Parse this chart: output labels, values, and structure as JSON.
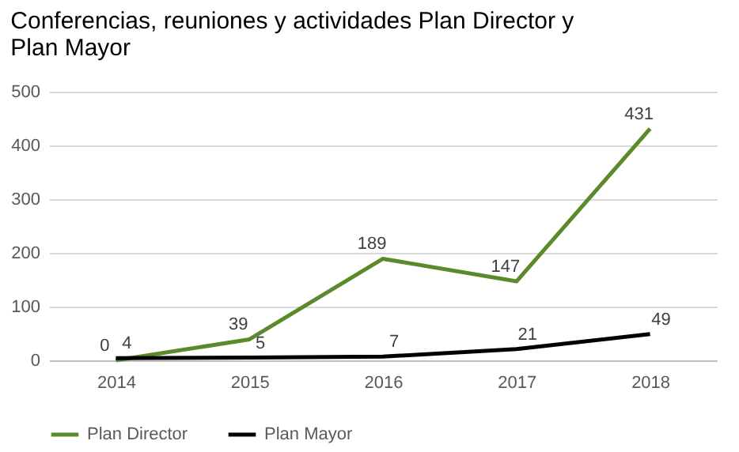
{
  "chart_data": {
    "type": "line",
    "title": "Conferencias, reuniones y actividades Plan Director y Plan Mayor",
    "categories": [
      "2014",
      "2015",
      "2016",
      "2017",
      "2018"
    ],
    "series": [
      {
        "name": "Plan Director",
        "color": "#5b8a2d",
        "values": [
          0,
          39,
          189,
          147,
          431
        ]
      },
      {
        "name": "Plan Mayor",
        "color": "#000000",
        "values": [
          4,
          5,
          7,
          21,
          49
        ]
      }
    ],
    "ylim": [
      0,
      500
    ],
    "yticks": [
      0,
      100,
      200,
      300,
      400,
      500
    ],
    "grid": "y",
    "legend": "bottom",
    "data_labels": true,
    "marker": "none",
    "line_style": "solid"
  }
}
